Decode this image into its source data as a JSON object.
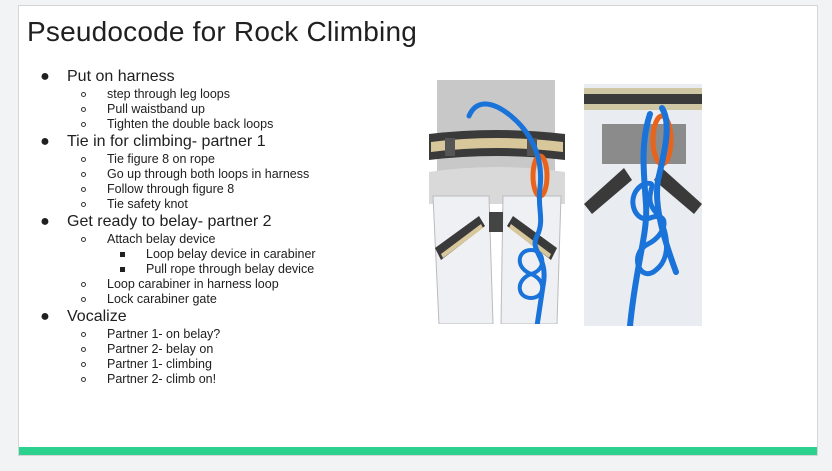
{
  "slide": {
    "title": "Pseudocode for Rock Climbing",
    "accent_color": "#2bd18e",
    "outline": [
      {
        "label": "Put on harness",
        "items": [
          {
            "label": "step through leg loops"
          },
          {
            "label": "Pull waistband up"
          },
          {
            "label": "Tighten the double back loops"
          }
        ]
      },
      {
        "label": "Tie in for climbing- partner 1",
        "items": [
          {
            "label": "Tie figure 8 on rope"
          },
          {
            "label": "Go up through both loops in harness"
          },
          {
            "label": "Follow through figure 8"
          },
          {
            "label": "Tie safety knot"
          }
        ]
      },
      {
        "label": "Get ready to belay- partner 2",
        "items": [
          {
            "label": "Attach belay device",
            "items": [
              {
                "label": "Loop belay device in carabiner"
              },
              {
                "label": "Pull rope through belay device"
              }
            ]
          },
          {
            "label": "Loop carabiner in harness loop"
          },
          {
            "label": "Lock carabiner gate"
          }
        ]
      },
      {
        "label": "Vocalize",
        "items": [
          {
            "label": "Partner 1- on belay?"
          },
          {
            "label": "Partner 2- belay on"
          },
          {
            "label": "Partner 1- climbing"
          },
          {
            "label": "Partner 2- climb on!"
          }
        ]
      }
    ],
    "illustrations": [
      {
        "icon": "harness-tie-in-illustration",
        "rope_color": "#1a73d9",
        "loop_color": "#e8641c"
      },
      {
        "icon": "figure-eight-knot-illustration",
        "rope_color": "#1a73d9",
        "loop_color": "#e8641c"
      }
    ]
  }
}
